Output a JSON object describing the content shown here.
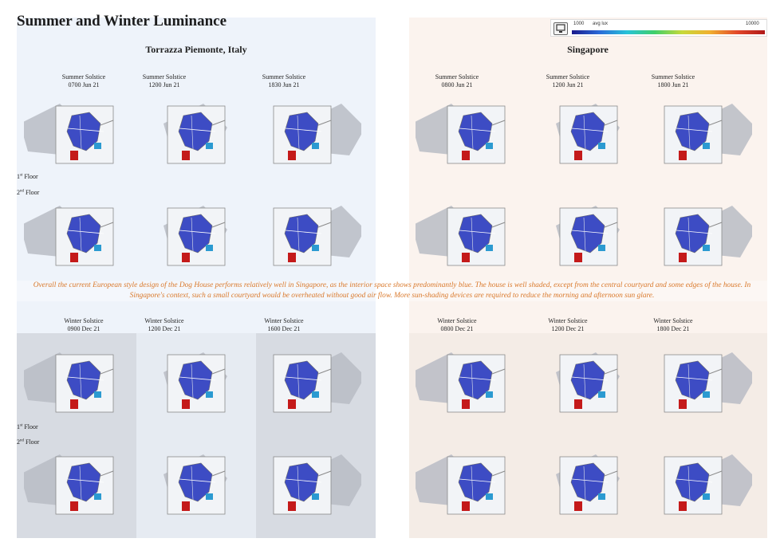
{
  "title": "Summer and Winter Luminance",
  "legend": {
    "min_label": "1000",
    "metric_label": "avg lux",
    "max_label": "10000",
    "icon": "monitor-icon",
    "gradient_colors": [
      "#1a1a8c",
      "#2a6ad8",
      "#27c2d8",
      "#3fcf6a",
      "#c7d93a",
      "#f0b030",
      "#e2482a",
      "#b01818"
    ]
  },
  "locations": {
    "italy": "Torrazza Piemonte, Italy",
    "singapore": "Singapore"
  },
  "floors": {
    "first_a": "1",
    "first_b": "st",
    "first_c": " Floor",
    "second_a": "2",
    "second_b": "nd",
    "second_c": " Floor"
  },
  "italy_summer": [
    {
      "season": "Summer Solstice",
      "time": "0700 Jun 21"
    },
    {
      "season": "Summer Solstice",
      "time": "1200 Jun 21"
    },
    {
      "season": "Summer Solstice",
      "time": "1830 Jun 21"
    }
  ],
  "singapore_summer": [
    {
      "season": "Summer Solstice",
      "time": "0800 Jun 21"
    },
    {
      "season": "Summer Solstice",
      "time": "1200 Jun 21"
    },
    {
      "season": "Summer Solstice",
      "time": "1800 Jun 21"
    }
  ],
  "italy_winter": [
    {
      "season": "Winter Solstice",
      "time": "0900 Dec 21"
    },
    {
      "season": "Winter Solstice",
      "time": "1200 Dec 21"
    },
    {
      "season": "Winter Solstice",
      "time": "1600 Dec 21"
    }
  ],
  "singapore_winter": [
    {
      "season": "Winter Solstice",
      "time": "0800 Dec 21"
    },
    {
      "season": "Winter Solstice",
      "time": "1200 Dec 21"
    },
    {
      "season": "Winter Solstice",
      "time": "1800 Dec 21"
    }
  ],
  "summary": "Overall the current European style design of the Dog House performs relatively well in Singapore, as the interior space shows predominantly blue. The house is well shaded, except from the central courtyard and some edges of the house. In Singapore's context, such a small courtyard would be overheated without good air flow. More sun-shading devices are required to reduce the morning and afternoon sun glare.",
  "colors": {
    "interior": "#3d4cc4",
    "hot": "#c41a1a",
    "shadow": "#b8bcc4",
    "summary_text": "#d9782a"
  }
}
